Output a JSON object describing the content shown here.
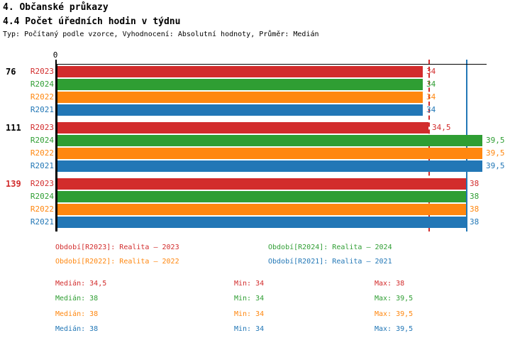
{
  "header": {
    "title1": "4. Občanské průkazy",
    "title2": "4.4 Počet úředních hodin v týdnu",
    "meta": "Typ: Počítaný podle vzorce, Vyhodnocení: Absolutní hodnoty, Průměr: Medián"
  },
  "colors": {
    "R2023": "#d22c2c",
    "R2024": "#2f9e33",
    "R2022": "#ff870f",
    "R2021": "#2277b6",
    "axis": "#000000",
    "group_label_default": "#000000",
    "group_label_highlight": "#d22c2c"
  },
  "chart_data": {
    "type": "bar",
    "orientation": "horizontal",
    "x_axis": {
      "position": "top",
      "zero_label": "0"
    },
    "xlim": [
      0,
      40
    ],
    "grid": false,
    "series_order": [
      "R2023",
      "R2024",
      "R2022",
      "R2021"
    ],
    "groups": [
      {
        "label": "76",
        "highlighted": false,
        "bars": [
          {
            "series": "R2023",
            "value": 34,
            "display": "34"
          },
          {
            "series": "R2024",
            "value": 34,
            "display": "34"
          },
          {
            "series": "R2022",
            "value": 34,
            "display": "34"
          },
          {
            "series": "R2021",
            "value": 34,
            "display": "34"
          }
        ]
      },
      {
        "label": "111",
        "highlighted": false,
        "bars": [
          {
            "series": "R2023",
            "value": 34.5,
            "display": "34,5"
          },
          {
            "series": "R2024",
            "value": 39.5,
            "display": "39,5"
          },
          {
            "series": "R2022",
            "value": 39.5,
            "display": "39,5"
          },
          {
            "series": "R2021",
            "value": 39.5,
            "display": "39,5"
          }
        ]
      },
      {
        "label": "139",
        "highlighted": true,
        "bars": [
          {
            "series": "R2023",
            "value": 38,
            "display": "38"
          },
          {
            "series": "R2024",
            "value": 38,
            "display": "38"
          },
          {
            "series": "R2022",
            "value": 38,
            "display": "38"
          },
          {
            "series": "R2021",
            "value": 38,
            "display": "38"
          }
        ]
      }
    ],
    "reference_lines": [
      {
        "series": "R2023",
        "value": 34.5,
        "style": "dashed"
      },
      {
        "series": "R2021",
        "value": 38,
        "style": "solid"
      }
    ]
  },
  "legend": {
    "items": [
      {
        "series": "R2023",
        "text": "Období[R2023]: Realita – 2023"
      },
      {
        "series": "R2024",
        "text": "Období[R2024]: Realita – 2024"
      },
      {
        "series": "R2022",
        "text": "Období[R2022]: Realita – 2022"
      },
      {
        "series": "R2021",
        "text": "Období[R2021]: Realita – 2021"
      }
    ]
  },
  "stats": {
    "rows": [
      {
        "series": "R2023",
        "median": "Medián: 34,5",
        "min": "Min: 34",
        "max": "Max: 38"
      },
      {
        "series": "R2024",
        "median": "Medián: 38",
        "min": "Min: 34",
        "max": "Max: 39,5"
      },
      {
        "series": "R2022",
        "median": "Medián: 38",
        "min": "Min: 34",
        "max": "Max: 39,5"
      },
      {
        "series": "R2021",
        "median": "Medián: 38",
        "min": "Min: 34",
        "max": "Max: 39,5"
      }
    ]
  }
}
